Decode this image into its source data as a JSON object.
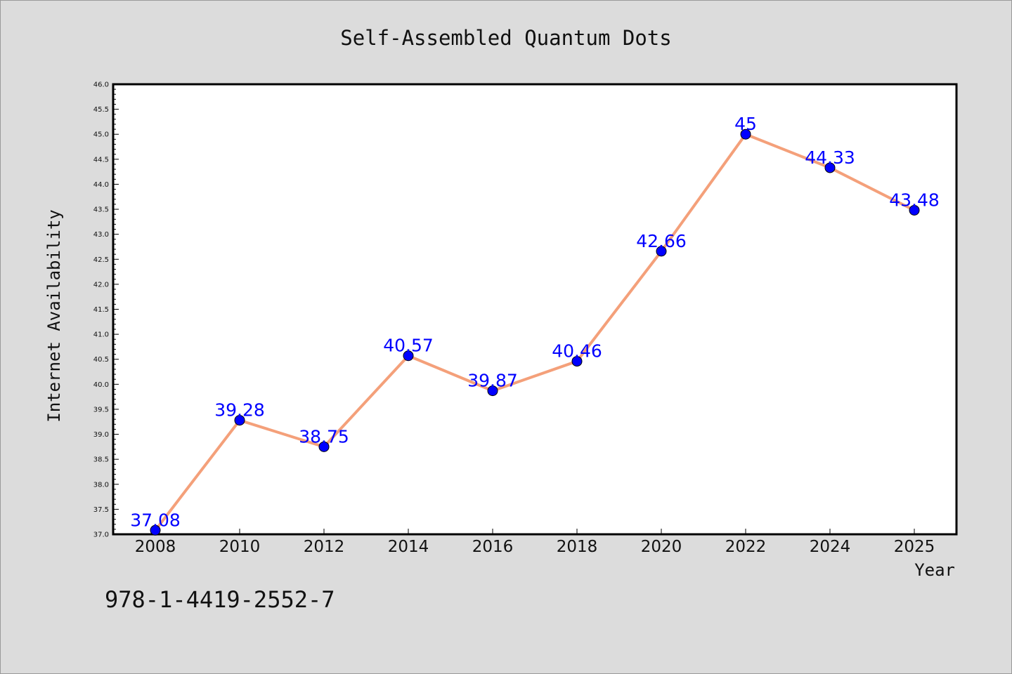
{
  "chart_data": {
    "type": "line",
    "title": "Self-Assembled Quantum Dots",
    "xlabel": "Year",
    "ylabel": "Internet Availability",
    "categories": [
      "2008",
      "2010",
      "2012",
      "2014",
      "2016",
      "2018",
      "2020",
      "2022",
      "2024",
      "2025"
    ],
    "series": [
      {
        "values": [
          37.08,
          39.28,
          38.75,
          40.57,
          39.87,
          40.46,
          42.66,
          45,
          44.33,
          43.48
        ],
        "labels": [
          "37.08",
          "39.28",
          "38.75",
          "40.57",
          "39.87",
          "40.46",
          "42.66",
          "45",
          "44.33",
          "43.48"
        ],
        "line_color": "#f4a07a",
        "marker_color": "#0000ff",
        "label_color": "#0000ff"
      }
    ],
    "ylim": [
      37.0,
      46.0
    ],
    "yticks": [
      "37.0",
      "37.5",
      "38.0",
      "38.5",
      "39.0",
      "39.5",
      "40.0",
      "40.5",
      "41.0",
      "41.5",
      "42.0",
      "42.5",
      "43.0",
      "43.5",
      "44.0",
      "44.5",
      "45.0",
      "45.5",
      "46.0"
    ],
    "grid": false,
    "legend": "none",
    "background_color": "#dcdcdc",
    "plot_background": "#ffffff"
  },
  "footer": {
    "isbn": "978-1-4419-2552-7"
  }
}
